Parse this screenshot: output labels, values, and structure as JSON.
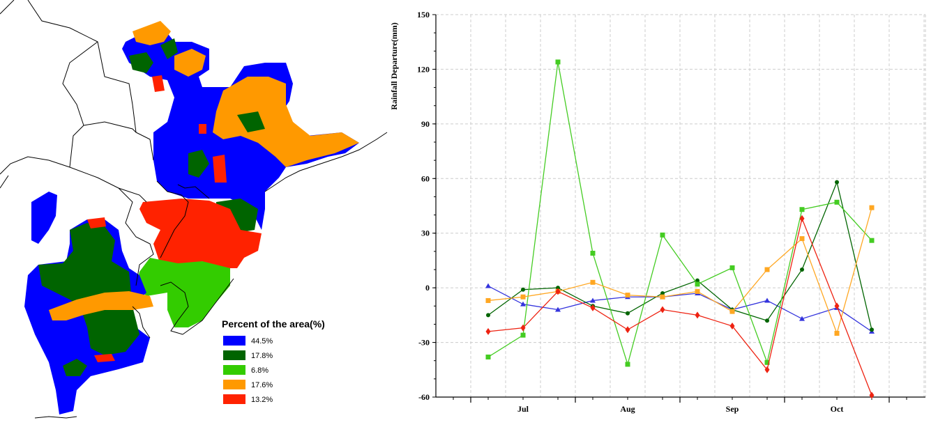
{
  "map": {
    "legend": {
      "title": "Percent of the area(%)",
      "entries": [
        {
          "label": "44.5%",
          "color": "#0000ff"
        },
        {
          "label": "17.8%",
          "color": "#006400"
        },
        {
          "label": "6.8%",
          "color": "#33cc00"
        },
        {
          "label": "17.6%",
          "color": "#ff9900"
        },
        {
          "label": "13.2%",
          "color": "#ff2200"
        }
      ]
    }
  },
  "chart_data": {
    "type": "line",
    "ylabel": "Rainfall Departure(mm)",
    "ylim": [
      -60,
      150
    ],
    "yticks": [
      -60,
      -30,
      0,
      30,
      60,
      90,
      120,
      150
    ],
    "month_labels": [
      "Jul",
      "Aug",
      "Sep",
      "Oct"
    ],
    "grid": true,
    "x": [
      1,
      2,
      3,
      4,
      5,
      6,
      7,
      8,
      9,
      10,
      11,
      12
    ],
    "series": [
      {
        "color": "#3333dd",
        "marker": "triangle",
        "values": [
          1,
          -9,
          -12,
          -7,
          -5,
          -5,
          -3,
          -12,
          -7,
          -17,
          -11,
          -24
        ]
      },
      {
        "color": "#006400",
        "marker": "circle",
        "values": [
          -15,
          -1,
          0,
          -10,
          -14,
          -3,
          4,
          -12,
          -18,
          10,
          58,
          -23
        ]
      },
      {
        "color": "#44cc22",
        "marker": "square",
        "values": [
          -38,
          -26,
          124,
          19,
          -42,
          29,
          2,
          11,
          -41,
          43,
          47,
          26
        ]
      },
      {
        "color": "#ffa722",
        "marker": "square",
        "values": [
          -7,
          -5,
          -2,
          3,
          -4,
          -5,
          -2,
          -13,
          10,
          27,
          -25,
          44
        ]
      },
      {
        "color": "#ee2211",
        "marker": "diamond",
        "values": [
          -24,
          -22,
          -2,
          -11,
          -23,
          -12,
          -15,
          -21,
          -45,
          38,
          -10,
          -59
        ]
      }
    ]
  }
}
